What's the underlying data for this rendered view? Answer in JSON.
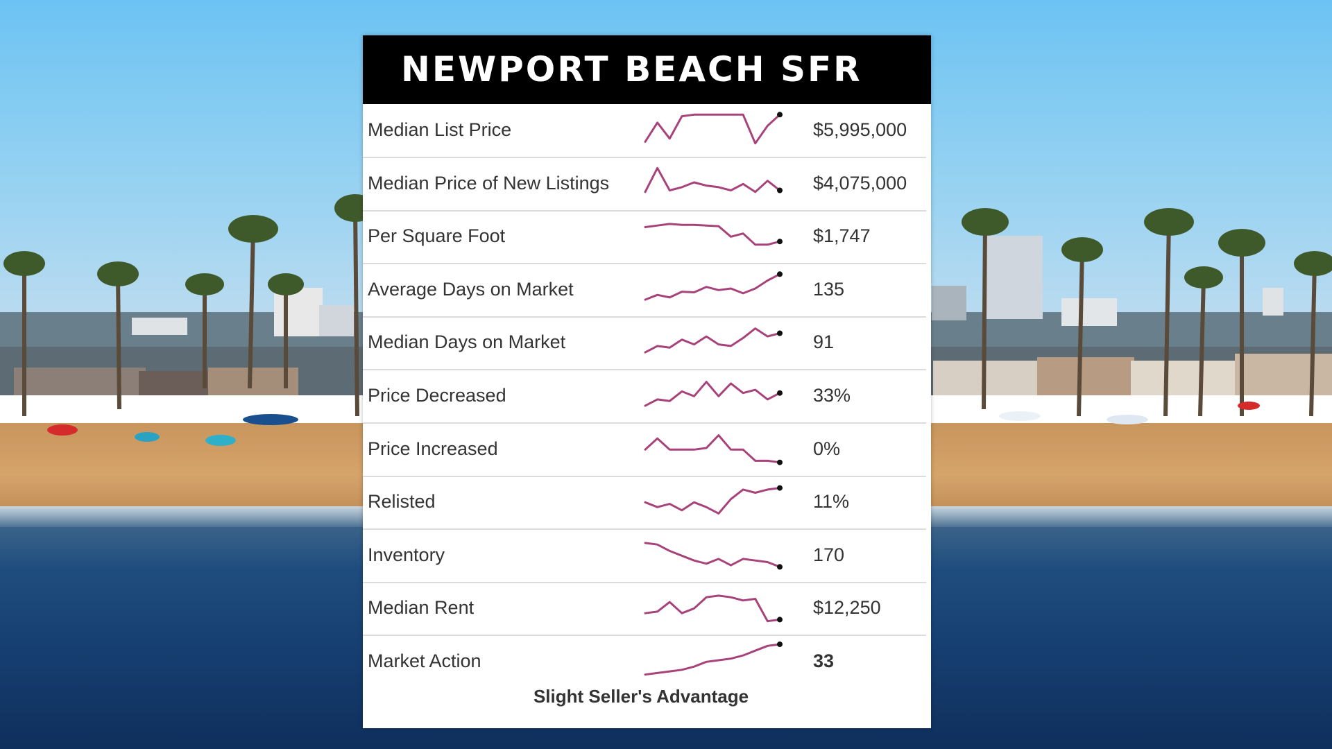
{
  "card": {
    "title": "NEWPORT BEACH SFR",
    "rows": [
      {
        "label": "Median List Price",
        "value": "$5,995,000",
        "trend": [
          0.1,
          0.7,
          0.2,
          0.9,
          0.95,
          0.95,
          0.95,
          0.95,
          0.95,
          0.05,
          0.6,
          0.95
        ]
      },
      {
        "label": "Median Price of New Listings",
        "value": "$4,075,000",
        "trend": [
          0.2,
          0.95,
          0.25,
          0.35,
          0.5,
          0.4,
          0.35,
          0.25,
          0.45,
          0.2,
          0.55,
          0.25
        ]
      },
      {
        "label": "Per Square Foot",
        "value": "$1,747",
        "trend": [
          0.75,
          0.8,
          0.85,
          0.82,
          0.82,
          0.8,
          0.78,
          0.45,
          0.55,
          0.2,
          0.2,
          0.3
        ]
      },
      {
        "label": "Average Days on Market",
        "value": "135",
        "trend": [
          0.15,
          0.3,
          0.22,
          0.4,
          0.38,
          0.55,
          0.45,
          0.5,
          0.35,
          0.5,
          0.75,
          0.95
        ]
      },
      {
        "label": "Median Days on Market",
        "value": "91",
        "trend": [
          0.15,
          0.35,
          0.3,
          0.55,
          0.4,
          0.65,
          0.4,
          0.35,
          0.6,
          0.9,
          0.65,
          0.75
        ]
      },
      {
        "label": "Price Decreased",
        "value": "33%",
        "trend": [
          0.15,
          0.35,
          0.3,
          0.6,
          0.45,
          0.9,
          0.45,
          0.85,
          0.55,
          0.65,
          0.35,
          0.55
        ]
      },
      {
        "label": "Price Increased",
        "value": "0%",
        "trend": [
          0.45,
          0.8,
          0.45,
          0.45,
          0.45,
          0.5,
          0.9,
          0.45,
          0.45,
          0.1,
          0.1,
          0.05
        ]
      },
      {
        "label": "Relisted",
        "value": "11%",
        "trend": [
          0.45,
          0.3,
          0.4,
          0.2,
          0.45,
          0.3,
          0.1,
          0.55,
          0.85,
          0.75,
          0.85,
          0.9
        ]
      },
      {
        "label": "Inventory",
        "value": "170",
        "trend": [
          0.85,
          0.8,
          0.6,
          0.45,
          0.3,
          0.2,
          0.35,
          0.15,
          0.35,
          0.3,
          0.25,
          0.1
        ]
      },
      {
        "label": "Median Rent",
        "value": "$12,250",
        "trend": [
          0.3,
          0.35,
          0.65,
          0.3,
          0.45,
          0.8,
          0.85,
          0.8,
          0.7,
          0.75,
          0.05,
          0.1
        ]
      },
      {
        "label": "Market Action",
        "value": "33",
        "trend": [
          0.05,
          0.1,
          0.15,
          0.2,
          0.3,
          0.45,
          0.5,
          0.55,
          0.65,
          0.8,
          0.95,
          1.0
        ]
      }
    ],
    "verdict": "Slight Seller's Advantage"
  },
  "colors": {
    "sparkline": "#a8427b",
    "header_bg": "#000000",
    "card_bg": "#ffffff"
  }
}
